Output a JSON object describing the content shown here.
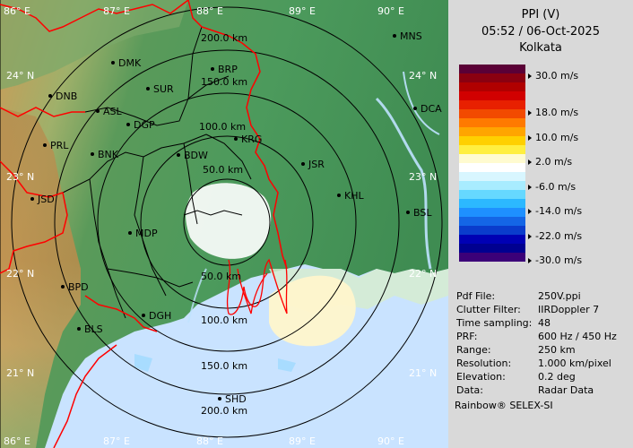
{
  "header": {
    "product": "PPI (V)",
    "datetime": "05:52 / 06-Oct-2025",
    "site": "Kolkata"
  },
  "map": {
    "lon_labels_top": [
      "86° E",
      "87° E",
      "88° E",
      "89° E",
      "90° E"
    ],
    "lon_labels_bottom": [
      "86° E",
      "87° E",
      "88° E",
      "89° E",
      "90° E"
    ],
    "lat_labels_left": [
      "24° N",
      "23° N",
      "22° N",
      "21° N"
    ],
    "lat_labels_right": [
      "24° N",
      "23° N",
      "22° N",
      "21° N"
    ],
    "range_labels_north": [
      "200.0 km",
      "150.0 km",
      "100.0 km",
      "50.0 km"
    ],
    "range_labels_south": [
      "50.0 km",
      "100.0 km",
      "150.0 km",
      "200.0 km"
    ],
    "stations": [
      {
        "code": "MNS"
      },
      {
        "code": "DMK"
      },
      {
        "code": "BRP"
      },
      {
        "code": "DNB"
      },
      {
        "code": "SUR"
      },
      {
        "code": "ASL"
      },
      {
        "code": "DGP"
      },
      {
        "code": "DCA"
      },
      {
        "code": "KRG"
      },
      {
        "code": "PRL"
      },
      {
        "code": "BNK"
      },
      {
        "code": "BDW"
      },
      {
        "code": "JSR"
      },
      {
        "code": "JSD"
      },
      {
        "code": "KHL"
      },
      {
        "code": "BSL"
      },
      {
        "code": "MDP"
      },
      {
        "code": "BPD"
      },
      {
        "code": "DGH"
      },
      {
        "code": "BLS"
      },
      {
        "code": "SHD"
      }
    ]
  },
  "legend": {
    "labels": [
      "30.0 m/s",
      "18.0 m/s",
      "10.0 m/s",
      "2.0 m/s",
      "-6.0 m/s",
      "-14.0 m/s",
      "-22.0 m/s",
      "-30.0 m/s"
    ],
    "colors": [
      "#5a0036",
      "#8a0010",
      "#b00000",
      "#d10000",
      "#e82000",
      "#f24a00",
      "#ff7a00",
      "#ffa500",
      "#ffd000",
      "#ffef40",
      "#fffbd0",
      "#ffffff",
      "#d8f6ff",
      "#a8ecff",
      "#66d8ff",
      "#2cb8ff",
      "#1e90ff",
      "#1466e6",
      "#0a3ccc",
      "#0000b4",
      "#000090",
      "#3b0078"
    ]
  },
  "info": [
    {
      "key": "Pdf File:",
      "value": "250V.ppi"
    },
    {
      "key": "Clutter Filter:",
      "value": "IIRDoppler 7"
    },
    {
      "key": "Time sampling:",
      "value": "48"
    },
    {
      "key": "PRF:",
      "value": "600 Hz / 450 Hz"
    },
    {
      "key": "Range:",
      "value": "250 km"
    },
    {
      "key": "Resolution:",
      "value": "1.000 km/pixel"
    },
    {
      "key": "Elevation:",
      "value": "0.2 deg"
    },
    {
      "key": "Data:",
      "value": "Radar Data"
    }
  ],
  "footer": "Rainbow® SELEX-SI",
  "colors": {
    "panel_bg": "#d9d9d9",
    "land_green": "#4f9a5c",
    "sea": "#c9e3ff",
    "boundary_red": "#ff0000",
    "district_black": "#000000"
  }
}
